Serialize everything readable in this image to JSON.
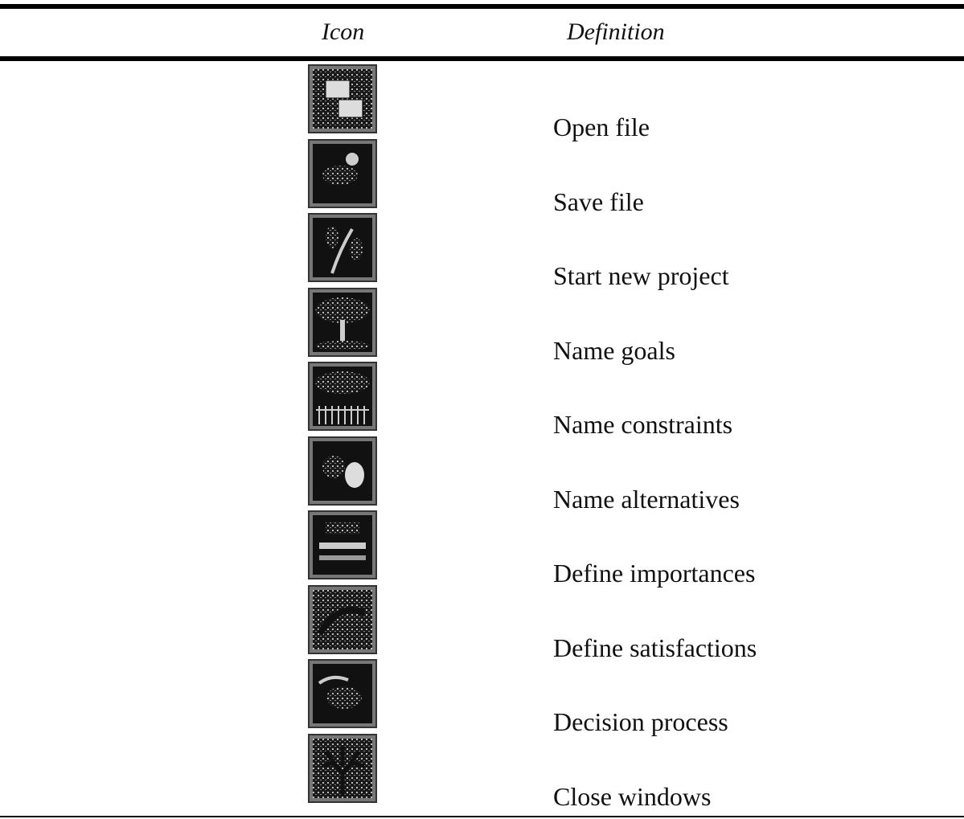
{
  "table": {
    "header": [
      "Icon",
      "Definition"
    ],
    "rows": [
      {
        "definition": "Open file"
      },
      {
        "definition": "Save file"
      },
      {
        "definition": "Start new project"
      },
      {
        "definition": "Name goals"
      },
      {
        "definition": "Name constraints"
      },
      {
        "definition": "Name alternatives"
      },
      {
        "definition": "Define importances"
      },
      {
        "definition": "Define satisfactions"
      },
      {
        "definition": "Decision process"
      },
      {
        "definition": "Close windows"
      }
    ]
  }
}
